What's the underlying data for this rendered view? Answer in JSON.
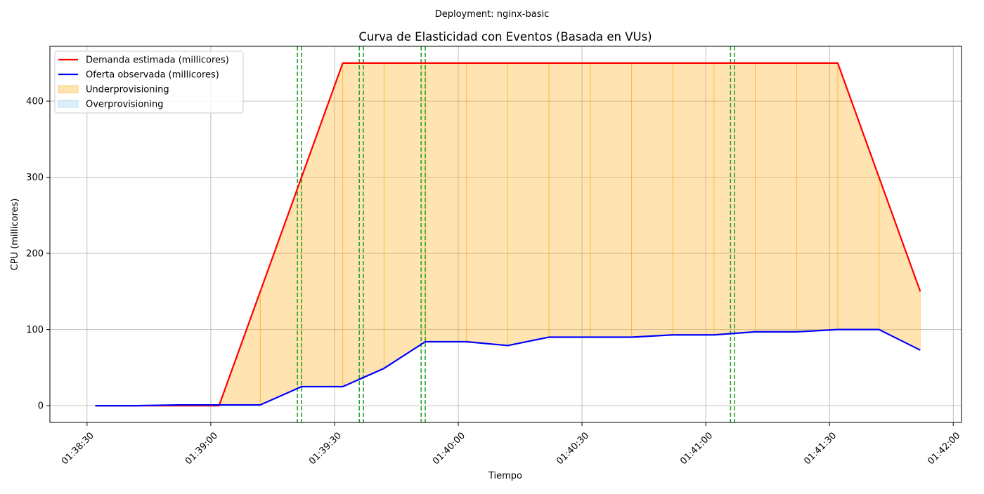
{
  "suptitle": "Deployment: nginx-basic",
  "chart_data": {
    "type": "line",
    "title": "Curva de Elasticidad con Eventos (Basada en VUs)",
    "xlabel": "Tiempo",
    "ylabel": "CPU (millicores)",
    "x_tick_labels": [
      "01:38:30",
      "01:39:00",
      "01:39:30",
      "01:40:00",
      "01:40:30",
      "01:41:00",
      "01:41:30",
      "01:42:00"
    ],
    "y_tick_labels": [
      "0",
      "100",
      "200",
      "300",
      "400"
    ],
    "xlim": [
      "01:38:21",
      "01:42:02"
    ],
    "ylim": [
      -22,
      472
    ],
    "grid": true,
    "legend_position": "top-left",
    "x": [
      "01:38:32",
      "01:38:42",
      "01:38:52",
      "01:39:02",
      "01:39:12",
      "01:39:22",
      "01:39:32",
      "01:39:42",
      "01:39:52",
      "01:40:02",
      "01:40:12",
      "01:40:22",
      "01:40:32",
      "01:40:42",
      "01:40:52",
      "01:41:02",
      "01:41:12",
      "01:41:22",
      "01:41:32",
      "01:41:42",
      "01:41:52"
    ],
    "series": [
      {
        "name": "Demanda estimada (millicores)",
        "color": "#ff0000",
        "values": [
          0,
          0,
          0,
          0,
          150,
          300,
          450,
          450,
          450,
          450,
          450,
          450,
          450,
          450,
          450,
          450,
          450,
          450,
          450,
          300,
          150
        ]
      },
      {
        "name": "Oferta observada (millicores)",
        "color": "#0000ff",
        "values": [
          0,
          0,
          1,
          1,
          1,
          25,
          25,
          49,
          84,
          84,
          79,
          90,
          90,
          90,
          93,
          93,
          97,
          97,
          100,
          100,
          73
        ]
      }
    ],
    "fills": [
      {
        "name": "Underprovisioning",
        "color": "#ffa500",
        "alpha": 0.3,
        "when": "demand > supply"
      },
      {
        "name": "Overprovisioning",
        "color": "#87ceeb",
        "alpha": 0.3,
        "when": "supply >= demand"
      }
    ],
    "event_lines": {
      "color": "#2ca02c",
      "style": "dashed",
      "times": [
        "01:39:21",
        "01:39:22",
        "01:39:36",
        "01:39:37",
        "01:39:51",
        "01:39:52",
        "01:41:06",
        "01:41:07"
      ]
    }
  }
}
